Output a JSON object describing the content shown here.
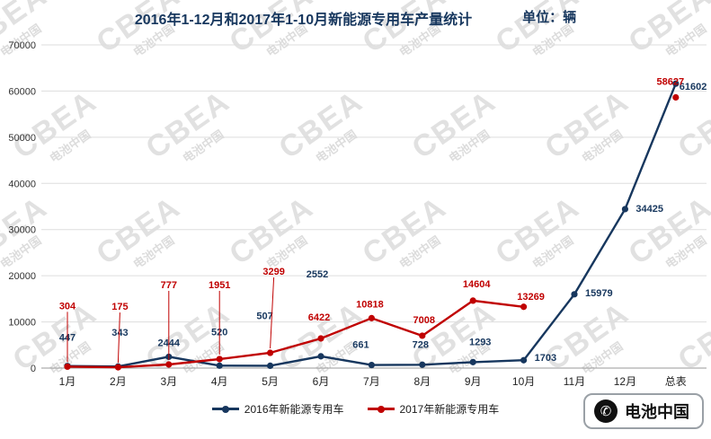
{
  "header": {
    "title": "2016年1-12月和2017年1-10月新能源专用车产量统计",
    "unit_label": "单位：辆"
  },
  "watermark": {
    "brand": "CBEA",
    "sub": "电池中国"
  },
  "logo": {
    "text": "电池中国",
    "icon": "phone-icon"
  },
  "chart_data": {
    "type": "line",
    "title": "2016年1-12月和2017年1-10月新能源专用车产量统计",
    "unit": "单位：辆",
    "categories": [
      "1月",
      "2月",
      "3月",
      "4月",
      "5月",
      "6月",
      "7月",
      "8月",
      "9月",
      "10月",
      "11月",
      "12月",
      "总表"
    ],
    "series": [
      {
        "name": "2016年新能源专用车",
        "color": "#17375e",
        "values": [
          447,
          343,
          2444,
          520,
          507,
          2552,
          661,
          728,
          1293,
          1703,
          15979,
          34425,
          61602
        ]
      },
      {
        "name": "2017年新能源专用车",
        "color": "#c00000",
        "values": [
          304,
          175,
          777,
          1951,
          3299,
          6422,
          10818,
          7008,
          14604,
          13269,
          null,
          null,
          58627
        ]
      }
    ],
    "ylim": [
      0,
      70000
    ],
    "yticks": [
      0,
      10000,
      20000,
      30000,
      40000,
      50000,
      60000,
      70000
    ],
    "grid": "horizontal",
    "legend_position": "bottom"
  }
}
